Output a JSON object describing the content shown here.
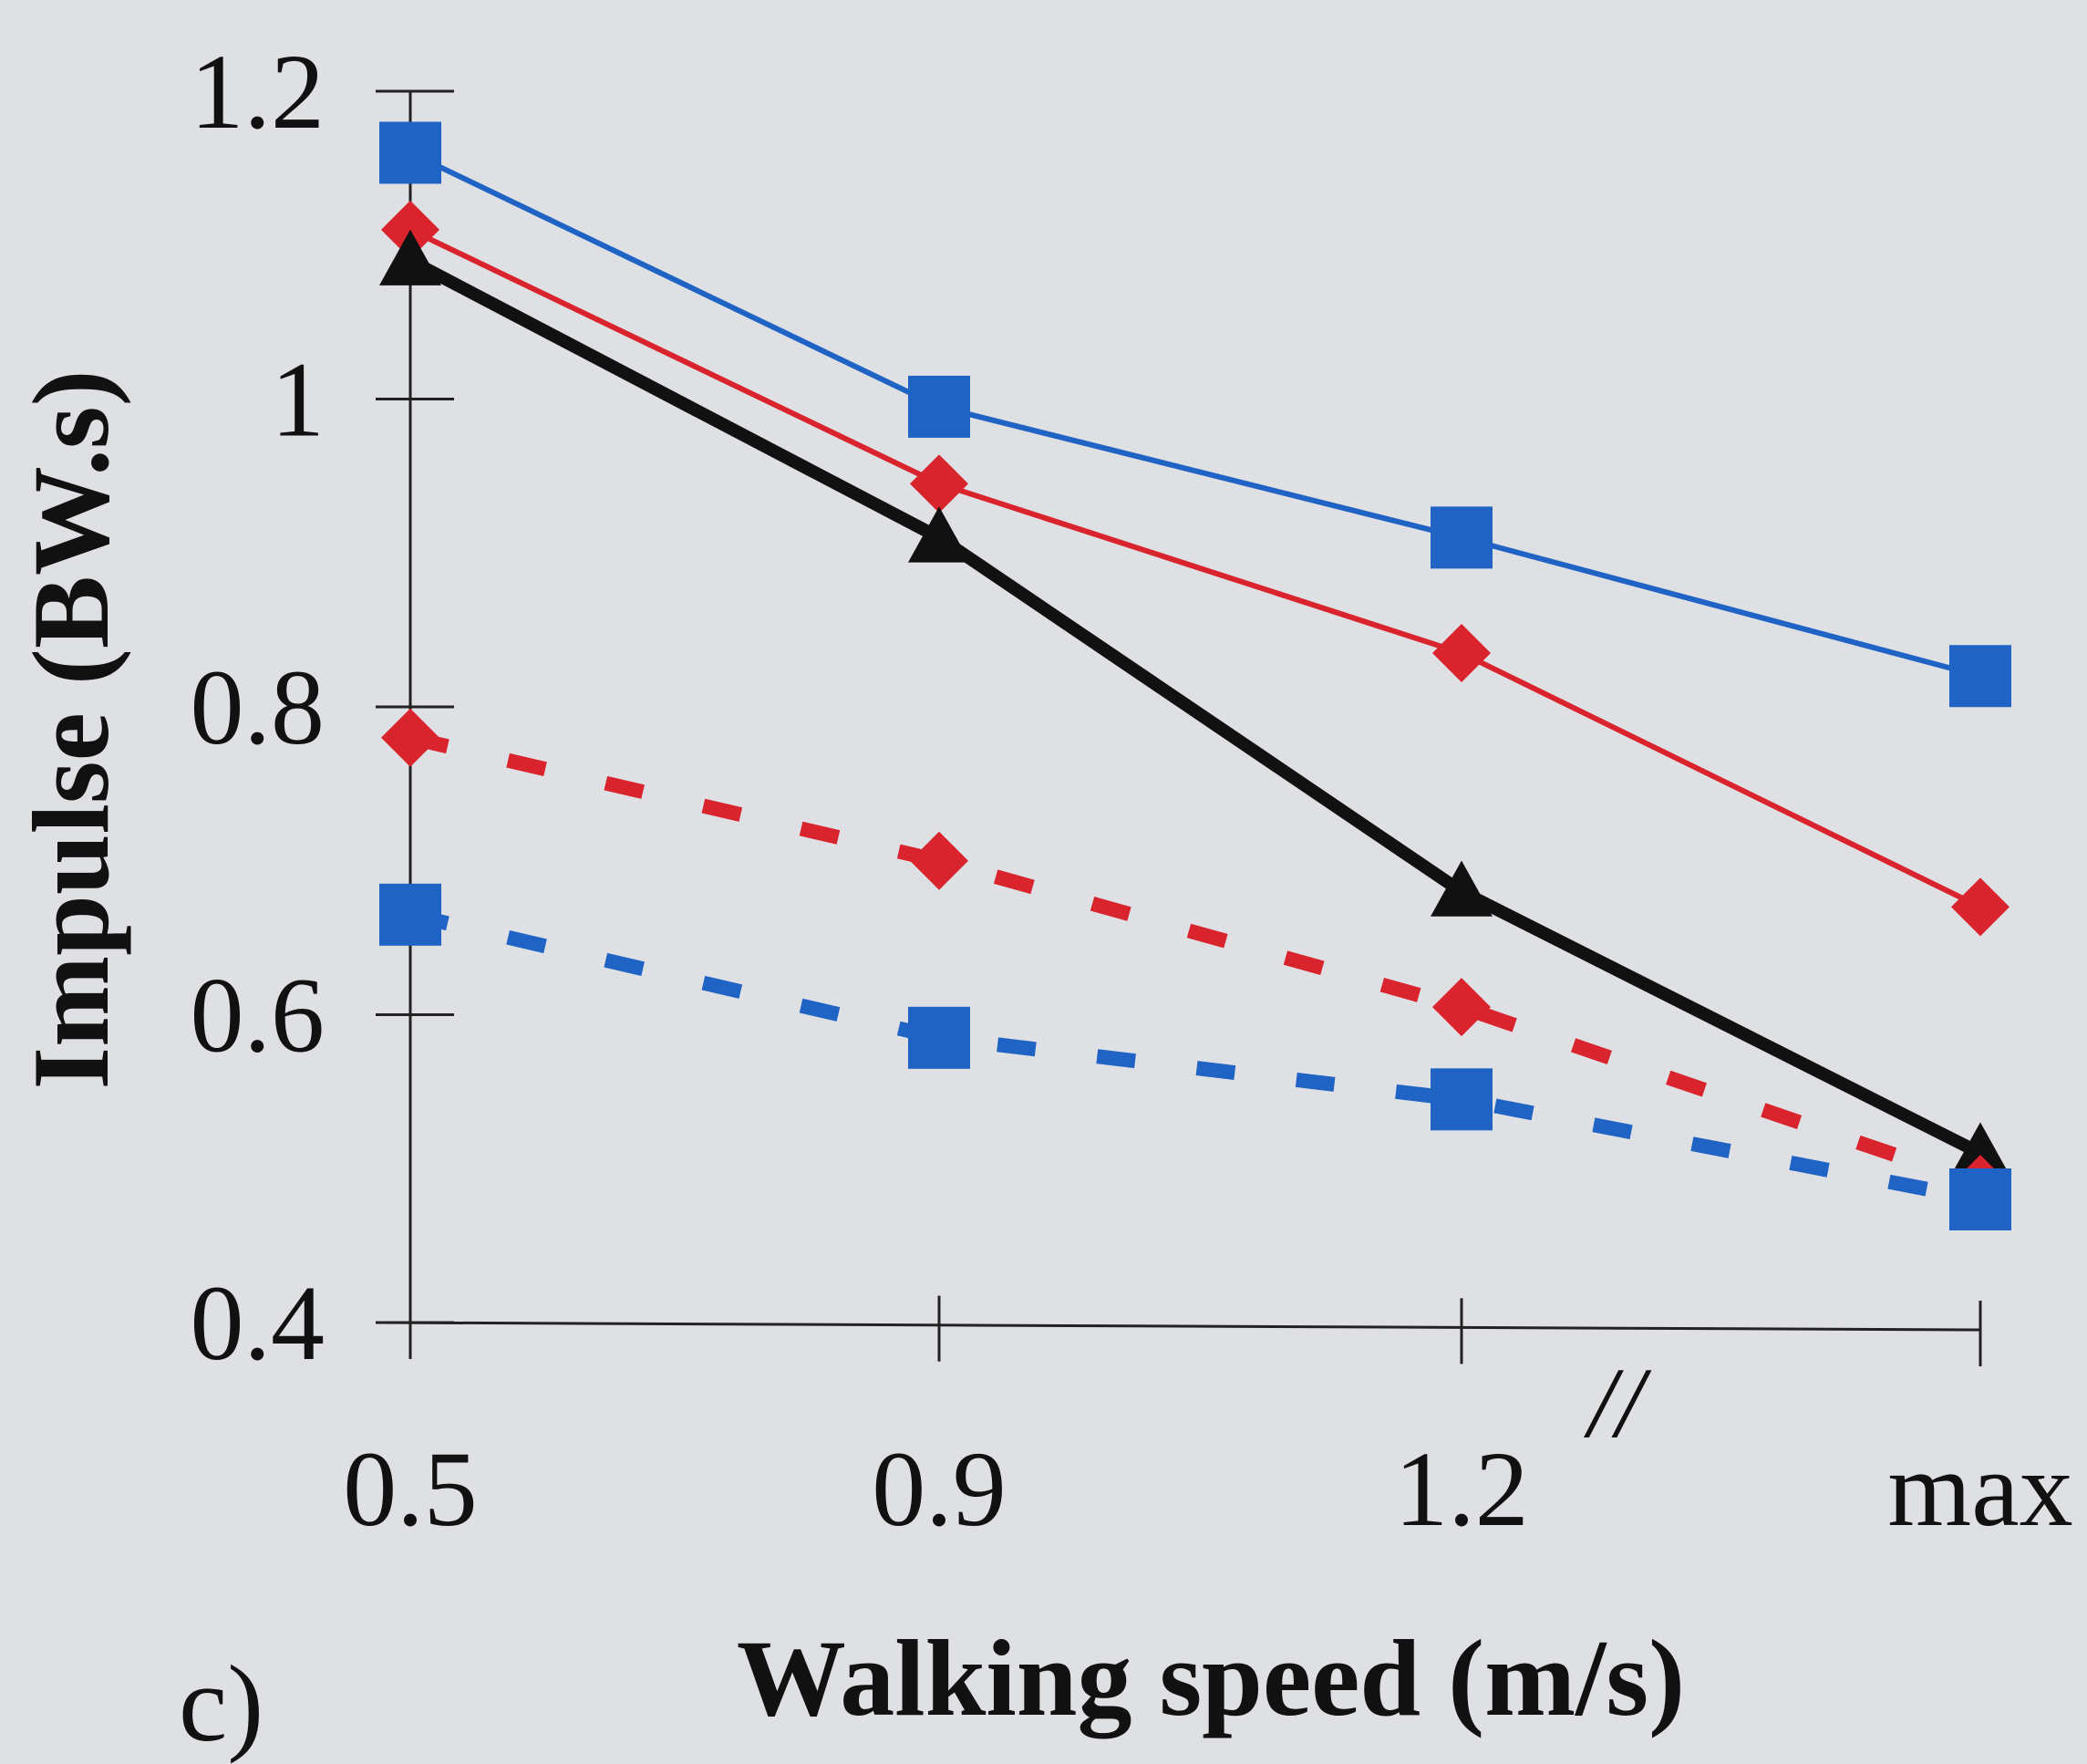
{
  "chart_data": {
    "type": "line",
    "panel_label": "c)",
    "xlabel": "Walking speed (m/s)",
    "ylabel": "Impulse (BW.s)",
    "categories": [
      "0.5",
      "0.9",
      "1.2",
      "max"
    ],
    "axis_break_mark": "//",
    "ylim": [
      0.4,
      1.2
    ],
    "yticks": [
      0.4,
      0.6,
      0.8,
      1,
      1.2
    ],
    "ytick_labels": [
      "0.4",
      "0.6",
      "0.8",
      "1",
      "1.2"
    ],
    "grid": false,
    "series": [
      {
        "color": "#1f63c4",
        "marker": "square",
        "style": "solid",
        "values": [
          1.16,
          0.995,
          0.91,
          0.82
        ]
      },
      {
        "color": "#d9232d",
        "marker": "diamond",
        "style": "solid",
        "values": [
          1.11,
          0.945,
          0.835,
          0.67
        ]
      },
      {
        "color": "#111111",
        "marker": "triangle",
        "style": "solid-thick",
        "values": [
          1.09,
          0.91,
          0.68,
          0.51
        ]
      },
      {
        "color": "#d9232d",
        "marker": "diamond",
        "style": "dashed",
        "values": [
          0.78,
          0.7,
          0.605,
          0.49
        ]
      },
      {
        "color": "#1f63c4",
        "marker": "square",
        "style": "dashed",
        "values": [
          0.665,
          0.585,
          0.545,
          0.48
        ]
      }
    ]
  }
}
